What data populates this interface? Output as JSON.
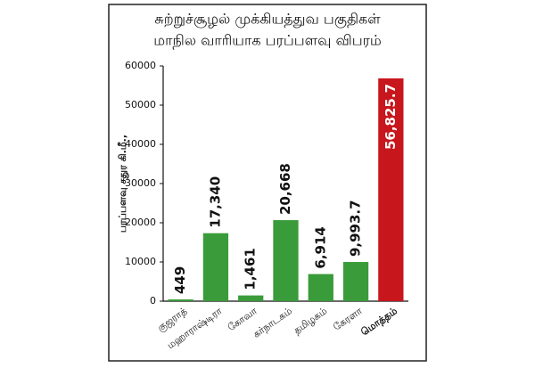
{
  "chart_data": {
    "type": "bar",
    "title": "சுற்றுச்சூழல் முக்கியத்துவ பகுதிகள்",
    "subtitle": "மாநில வாரியாக பரப்பளவு விபரம்",
    "y_label": "பரப்பளவு சதுர கி.மீ.,",
    "categories": [
      "குஜராத்",
      "மஹாராஷ்டிரா",
      "கோவா",
      "கர்நாடகம்",
      "தமிழகம்",
      "கேரளா",
      "மொத்தம்"
    ],
    "values": [
      449,
      17340,
      1461,
      20668,
      6914,
      9993.7,
      56825.7
    ],
    "value_labels": [
      "449",
      "17,340",
      "1,461",
      "20,668",
      "6,914",
      "9,993.7",
      "56,825.7"
    ],
    "colors": [
      "#3a9b3a",
      "#3a9b3a",
      "#3a9b3a",
      "#3a9b3a",
      "#3a9b3a",
      "#3a9b3a",
      "#c8161d"
    ],
    "ylim": [
      0,
      60000
    ],
    "yticks": [
      0,
      10000,
      20000,
      30000,
      40000,
      50000,
      60000
    ],
    "grid": false
  }
}
